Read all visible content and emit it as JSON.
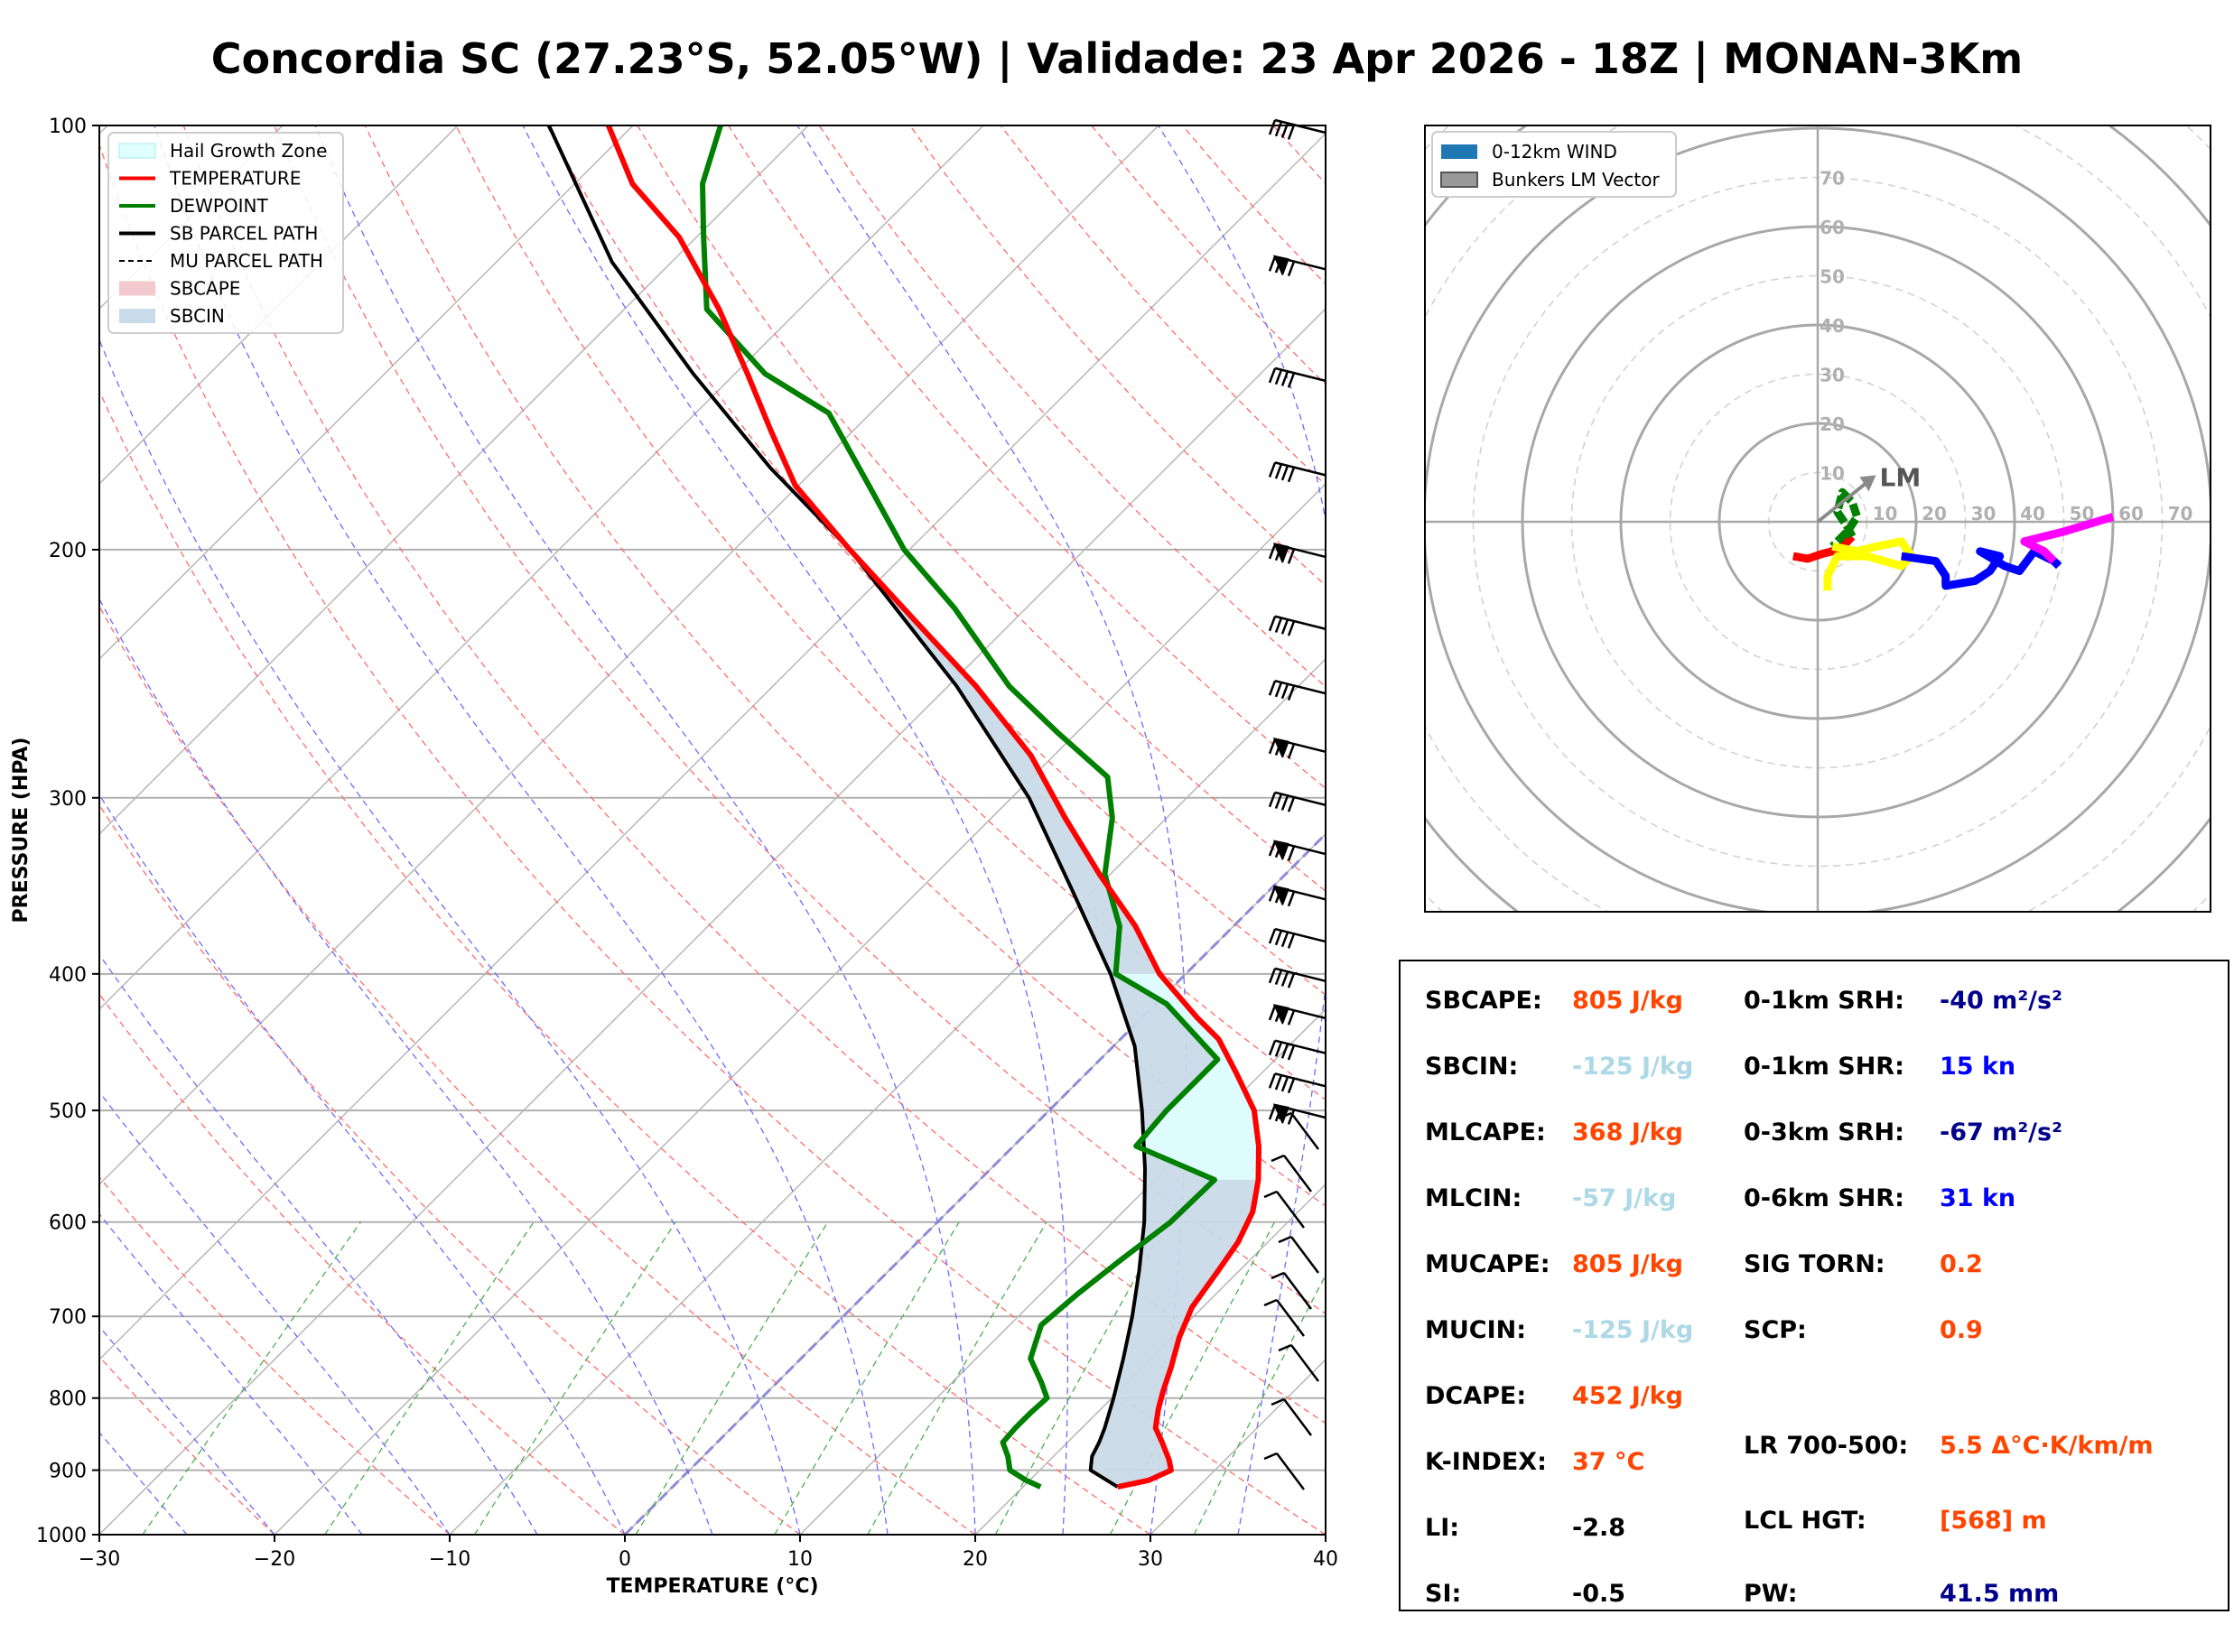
{
  "title": "Concordia SC (27.23°S, 52.05°W) | Validade: 23 Apr 2026 - 18Z | MONAN-3Km",
  "skewt": {
    "xlabel": "TEMPERATURE (°C)",
    "ylabel": "PRESSURE (HPA)",
    "xticks": [
      "−30",
      "−20",
      "−10",
      "0",
      "10",
      "20",
      "30",
      "40"
    ],
    "yticks": [
      "100",
      "200",
      "300",
      "400",
      "500",
      "600",
      "700",
      "800",
      "900",
      "1000"
    ],
    "legend": [
      {
        "label": "Hail Growth Zone",
        "kind": "patch",
        "color": "#e0ffff"
      },
      {
        "label": "TEMPERATURE",
        "kind": "line",
        "color": "#ff0000"
      },
      {
        "label": "DEWPOINT",
        "kind": "line",
        "color": "#008000"
      },
      {
        "label": "SB PARCEL PATH",
        "kind": "line",
        "color": "#000000"
      },
      {
        "label": "MU PARCEL PATH",
        "kind": "dashed",
        "color": "#000000"
      },
      {
        "label": "SBCAPE",
        "kind": "patch",
        "color": "#f2c9cc"
      },
      {
        "label": "SBCIN",
        "kind": "patch",
        "color": "#c9dae8"
      }
    ]
  },
  "hodograph": {
    "legend": [
      {
        "label": "0-12km WIND",
        "color": "#1f77b4"
      },
      {
        "label": "Bunkers LM Vector",
        "color": "#999999"
      }
    ],
    "ring_labels_vertical": [
      "10",
      "20",
      "30",
      "40",
      "50",
      "60",
      "70"
    ],
    "ring_labels_horizontal": [
      "10",
      "20",
      "30",
      "40",
      "50",
      "60",
      "70"
    ],
    "lm_label": "LM"
  },
  "indices": {
    "left": [
      {
        "label": "SBCAPE:",
        "value": "805 J/kg",
        "color": "#ff4500"
      },
      {
        "label": "SBCIN:",
        "value": "-125 J/kg",
        "color": "#add8e6"
      },
      {
        "label": "MLCAPE:",
        "value": "368 J/kg",
        "color": "#ff4500"
      },
      {
        "label": "MLCIN:",
        "value": "-57 J/kg",
        "color": "#add8e6"
      },
      {
        "label": "MUCAPE:",
        "value": "805 J/kg",
        "color": "#ff4500"
      },
      {
        "label": "MUCIN:",
        "value": "-125 J/kg",
        "color": "#add8e6"
      },
      {
        "label": "DCAPE:",
        "value": "452 J/kg",
        "color": "#ff4500"
      },
      {
        "label": "K-INDEX:",
        "value": "37 °C",
        "color": "#ff4500"
      },
      {
        "label": "LI:",
        "value": "-2.8",
        "color": "#000000"
      },
      {
        "label": "SI:",
        "value": "-0.5",
        "color": "#000000"
      }
    ],
    "right": [
      {
        "label": "0-1km SRH:",
        "value": "-40 m²/s²",
        "color": "#00008b"
      },
      {
        "label": "0-1km SHR:",
        "value": "15 kn",
        "color": "#0000ff"
      },
      {
        "label": "0-3km SRH:",
        "value": "-67 m²/s²",
        "color": "#00008b"
      },
      {
        "label": "0-6km SHR:",
        "value": "31 kn",
        "color": "#0000ff"
      },
      {
        "label": "SIG TORN:",
        "value": "0.2",
        "color": "#ff4500"
      },
      {
        "label": "SCP:",
        "value": "0.9",
        "color": "#ff4500"
      },
      {
        "label": "LR 700-500:",
        "value": "5.5 Δ°C·K/km/m",
        "color": "#ff4500"
      },
      {
        "label": "LCL HGT:",
        "value": "[568] m",
        "color": "#ff4500"
      },
      {
        "label": "PW:",
        "value": "41.5 mm",
        "color": "#00008b"
      }
    ]
  },
  "chart_data": [
    {
      "type": "line",
      "title": "Concordia SC (27.23°S, 52.05°W) | Validade: 23 Apr 2026 - 18Z | MONAN-3Km",
      "xlabel": "TEMPERATURE (°C)",
      "ylabel": "PRESSURE (HPA)",
      "xlim": [
        -30,
        40
      ],
      "ylim": [
        1000,
        100
      ],
      "y_scale": "log",
      "skew": "skew-T",
      "grid": true,
      "legend_position": "top-left",
      "series": [
        {
          "name": "TEMPERATURE",
          "color": "#ff0000",
          "p": [
            925,
            915,
            900,
            885,
            860,
            840,
            815,
            790,
            760,
            725,
            690,
            650,
            620,
            590,
            560,
            530,
            500,
            470,
            445,
            430,
            400,
            370,
            340,
            310,
            280,
            250,
            225,
            200,
            180,
            165,
            150,
            135,
            120,
            110,
            100
          ],
          "t": [
            25.4,
            26.8,
            27.5,
            26.8,
            25.4,
            24.2,
            23.3,
            22.5,
            21.6,
            20.4,
            19.4,
            18.8,
            18.3,
            17.4,
            15.9,
            14.0,
            11.7,
            8.5,
            5.6,
            3.2,
            -1.5,
            -5.6,
            -10.6,
            -15.8,
            -21.3,
            -28.4,
            -35.5,
            -43.4,
            -50.2,
            -54.6,
            -59.3,
            -64.6,
            -71.0,
            -76.7,
            -81.4
          ]
        },
        {
          "name": "DEWPOINT",
          "color": "#008000",
          "p": [
            925,
            915,
            900,
            880,
            860,
            840,
            820,
            800,
            780,
            750,
            710,
            675,
            640,
            600,
            560,
            530,
            500,
            460,
            420,
            400,
            370,
            340,
            310,
            290,
            270,
            250,
            220,
            200,
            180,
            160,
            150,
            135,
            120,
            110,
            100
          ],
          "t": [
            21.0,
            19.8,
            18.3,
            17.4,
            16.3,
            16.2,
            16.2,
            16.3,
            15.1,
            13.1,
            11.8,
            12.1,
            12.6,
            13.3,
            13.4,
            7.0,
            6.7,
            6.7,
            0.6,
            -4.0,
            -6.5,
            -10.3,
            -13.1,
            -15.7,
            -21.0,
            -26.5,
            -34.1,
            -40.3,
            -46.0,
            -52.4,
            -58.3,
            -65.3,
            -69.6,
            -72.7,
            -75.0
          ]
        },
        {
          "name": "SB PARCEL PATH",
          "color": "#000000",
          "p": [
            925,
            900,
            880,
            860,
            840,
            800,
            750,
            700,
            650,
            600,
            550,
            500,
            450,
            400,
            350,
            300,
            250,
            200,
            175,
            150,
            125,
            100
          ],
          "t": [
            25.4,
            22.9,
            22.2,
            21.8,
            21.3,
            20.1,
            18.4,
            16.5,
            14.3,
            11.8,
            8.8,
            5.3,
            1.2,
            -4.3,
            -11.1,
            -19.0,
            -29.5,
            -43.4,
            -52.6,
            -62.4,
            -73.4,
            -84.8
          ]
        }
      ]
    },
    {
      "type": "line",
      "title": "",
      "xlabel": "",
      "ylabel": "",
      "polar": true,
      "units": "kn",
      "rlim": [
        0,
        70
      ],
      "legend_position": "top-left",
      "series": [
        {
          "name": "0-12km WIND",
          "segment_colors": [
            "#ff0000",
            "#008000",
            "#ffff00",
            "#0000ff",
            "#ff00ff"
          ],
          "segments": [
            {
              "color": "#ff0000",
              "u": [
                -5,
                -2,
                1,
                3,
                5,
                7
              ],
              "v": [
                -7,
                -7.5,
                -6.5,
                -6,
                -5,
                -3
              ]
            },
            {
              "color": "#008000",
              "u": [
                7,
                6,
                4,
                5,
                7,
                8,
                6,
                3
              ],
              "v": [
                -3,
                -1,
                2,
                6,
                4,
                1,
                -2,
                -5
              ]
            },
            {
              "color": "#ffff00",
              "u": [
                3,
                8,
                12,
                17,
                19,
                17,
                10,
                4,
                2,
                2
              ],
              "v": [
                -5,
                -6,
                -5,
                -4,
                -7,
                -9,
                -7,
                -7,
                -11,
                -14
              ]
            },
            {
              "color": "#0000ff",
              "u": [
                17,
                24,
                26,
                26,
                32,
                35,
                37,
                33,
                38,
                41,
                44,
                48,
                49
              ],
              "v": [
                -7,
                -8,
                -11,
                -13,
                -12,
                -10,
                -7,
                -6,
                -9,
                -10,
                -6,
                -8,
                -9
              ]
            },
            {
              "color": "#ff00ff",
              "u": [
                48,
                46,
                44,
                42,
                50,
                60
              ],
              "v": [
                -8,
                -6,
                -5,
                -4,
                -2,
                1
              ]
            }
          ]
        },
        {
          "name": "Bunkers LM Vector",
          "u": [
            0,
            10
          ],
          "v": [
            0,
            8
          ]
        }
      ]
    }
  ]
}
